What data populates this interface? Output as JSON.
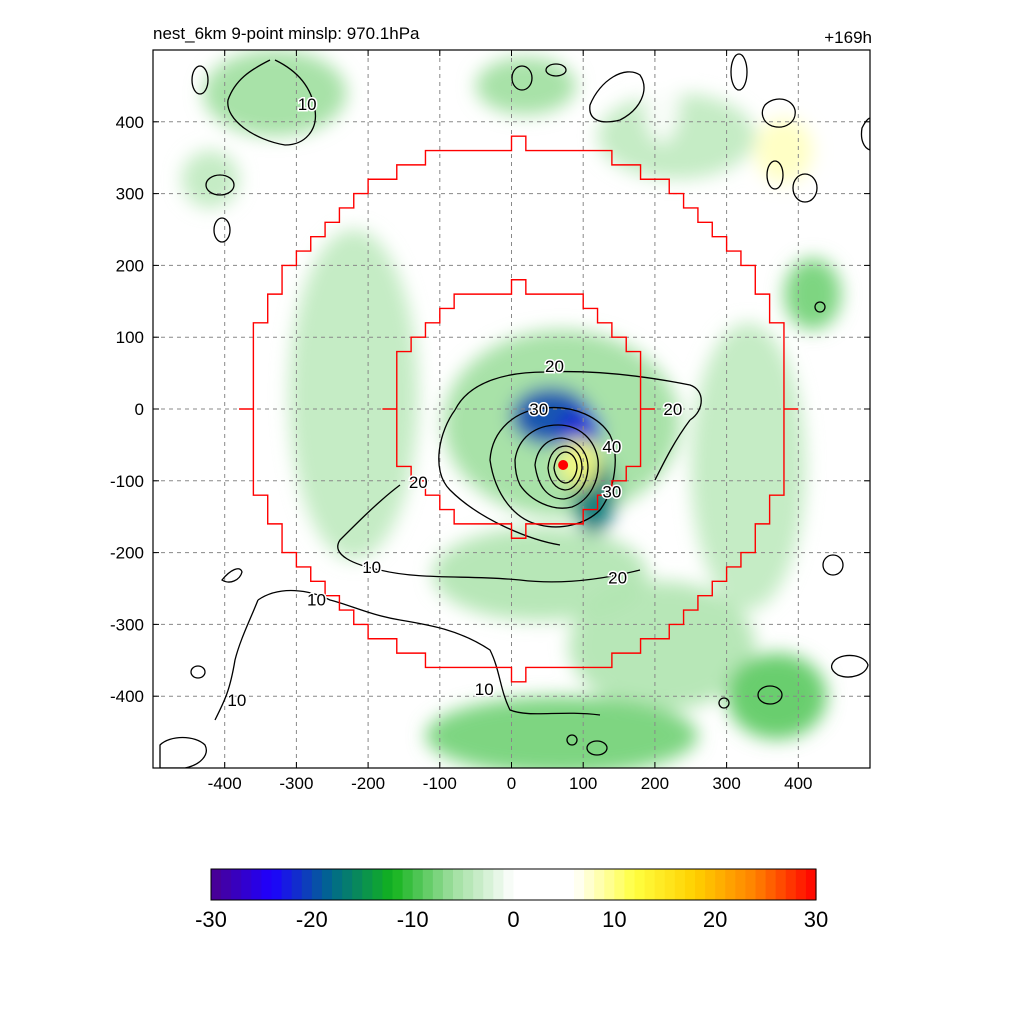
{
  "header": {
    "title": "nest_6km  9-point minslp: 970.1hPa",
    "lead_time": "+169h"
  },
  "chart_data": {
    "type": "heatmap",
    "title": "nest_6km  9-point minslp: 970.1hPa",
    "lead_time_label": "+169h",
    "xlim": [
      -500,
      500
    ],
    "ylim": [
      -500,
      500
    ],
    "xticks": [
      -400,
      -300,
      -200,
      -100,
      0,
      100,
      200,
      300,
      400
    ],
    "yticks": [
      -400,
      -300,
      -200,
      -100,
      0,
      100,
      200,
      300,
      400
    ],
    "grid": true,
    "colorbar": {
      "range": [
        -30,
        30
      ],
      "ticks": [
        -30,
        -20,
        -10,
        0,
        10,
        20,
        30
      ],
      "tick_labels": [
        "-30",
        "-20",
        "-10",
        "0",
        "10",
        "20",
        "30"
      ],
      "placement": "bottom",
      "stops": [
        "#4b0090",
        "#1e00ff",
        "#006a8a",
        "#13b31c",
        "#9fdf9f",
        "#ffffff",
        "#ffffff",
        "#ffff40",
        "#ffd000",
        "#ff8000",
        "#ff0000"
      ]
    },
    "center_marker": {
      "x": 72,
      "y": -78,
      "color": "#ff0000"
    },
    "inner_ring_radius": 180,
    "outer_ring_radius": 380,
    "ring_color": "#ff0000",
    "contour_labels": [
      {
        "text": "20",
        "x": 60,
        "y": 60
      },
      {
        "text": "30",
        "x": 38,
        "y": 0
      },
      {
        "text": "40",
        "x": 140,
        "y": -52
      },
      {
        "text": "30",
        "x": 140,
        "y": -115
      },
      {
        "text": "20",
        "x": 225,
        "y": 0
      },
      {
        "text": "20",
        "x": -130,
        "y": -102
      },
      {
        "text": "20",
        "x": 148,
        "y": -235
      },
      {
        "text": "10",
        "x": -195,
        "y": -220
      },
      {
        "text": "10",
        "x": -272,
        "y": -265
      },
      {
        "text": "10",
        "x": -383,
        "y": -405
      },
      {
        "text": "10",
        "x": -38,
        "y": -390
      },
      {
        "text": "10",
        "x": -285,
        "y": 425
      }
    ],
    "field_blobs": [
      {
        "x": 70,
        "y": -20,
        "rx": 165,
        "ry": 130,
        "v": -6
      },
      {
        "x": 40,
        "y": -230,
        "rx": 150,
        "ry": 65,
        "v": -5
      },
      {
        "x": -220,
        "y": 20,
        "rx": 90,
        "ry": 230,
        "v": -4
      },
      {
        "x": 330,
        "y": -80,
        "rx": 80,
        "ry": 200,
        "v": -4
      },
      {
        "x": 210,
        "y": -330,
        "rx": 130,
        "ry": 90,
        "v": -5
      },
      {
        "x": 70,
        "y": -455,
        "rx": 190,
        "ry": 55,
        "v": -8
      },
      {
        "x": 370,
        "y": -400,
        "rx": 70,
        "ry": 60,
        "v": -9
      },
      {
        "x": 420,
        "y": 160,
        "rx": 40,
        "ry": 50,
        "v": -8
      },
      {
        "x": -330,
        "y": 440,
        "rx": 100,
        "ry": 60,
        "v": -6
      },
      {
        "x": -420,
        "y": 320,
        "rx": 40,
        "ry": 40,
        "v": -4
      },
      {
        "x": 20,
        "y": 450,
        "rx": 70,
        "ry": 40,
        "v": -6
      },
      {
        "x": 230,
        "y": 380,
        "rx": 110,
        "ry": 60,
        "v": -4
      },
      {
        "x": 55,
        "y": -10,
        "rx": 55,
        "ry": 40,
        "v": -20
      },
      {
        "x": 115,
        "y": -120,
        "rx": 30,
        "ry": 55,
        "v": -17
      },
      {
        "x": 95,
        "y": -30,
        "rx": 30,
        "ry": 30,
        "v": -22
      },
      {
        "x": 95,
        "y": -75,
        "rx": 28,
        "ry": 35,
        "v": 10
      },
      {
        "x": 380,
        "y": 360,
        "rx": 40,
        "ry": 45,
        "v": 8
      },
      {
        "x": 210,
        "y": 430,
        "rx": 25,
        "ry": 60,
        "v": 6
      }
    ]
  }
}
